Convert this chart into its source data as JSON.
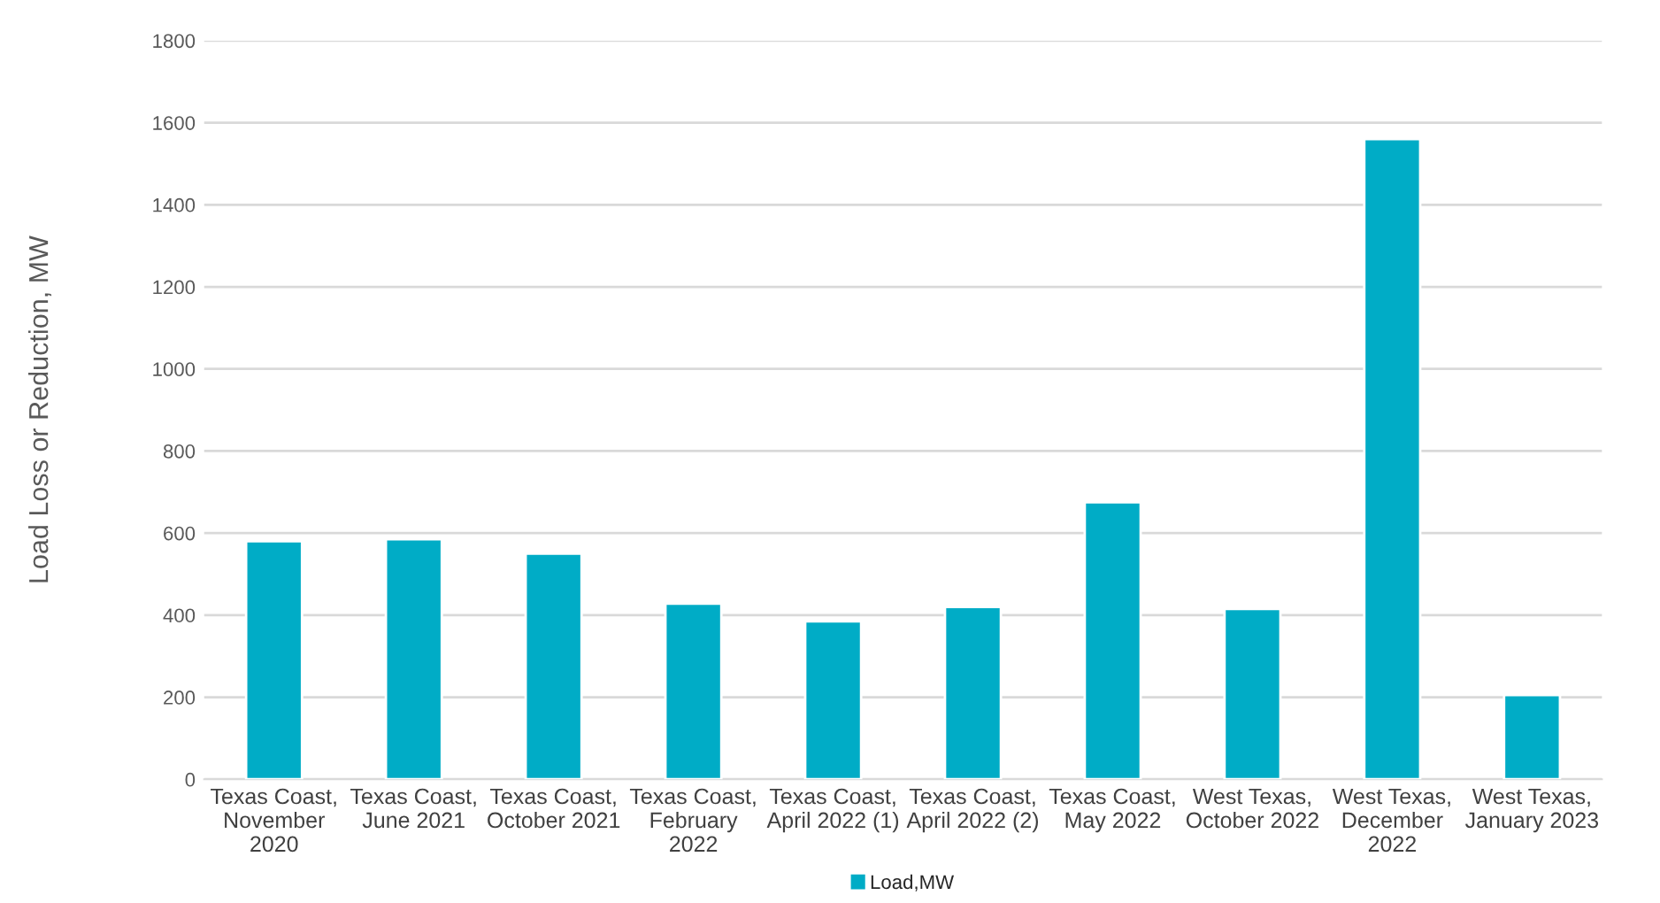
{
  "chart_data": {
    "type": "bar",
    "ylabel": "Load Loss or Reduction, MW",
    "categories": [
      "Texas Coast,\nNovember\n2020",
      "Texas Coast,\nJune 2021",
      "Texas Coast,\nOctober 2021",
      "Texas Coast,\nFebruary\n2022",
      "Texas Coast,\nApril 2022 (1)",
      "Texas Coast,\nApril 2022 (2)",
      "Texas Coast,\nMay 2022",
      "West Texas,\nOctober 2022",
      "West Texas,\nDecember\n2022",
      "West Texas,\nJanuary 2023"
    ],
    "series": [
      {
        "name": "Load,MW",
        "color": "#00acc6",
        "values": [
          580,
          585,
          550,
          428,
          385,
          420,
          675,
          415,
          1560,
          205
        ]
      }
    ],
    "ylim": [
      0,
      1800
    ],
    "yticks": [
      0,
      200,
      400,
      600,
      800,
      1000,
      1200,
      1400,
      1600,
      1800
    ],
    "grid": "y",
    "legend": "bottom"
  }
}
